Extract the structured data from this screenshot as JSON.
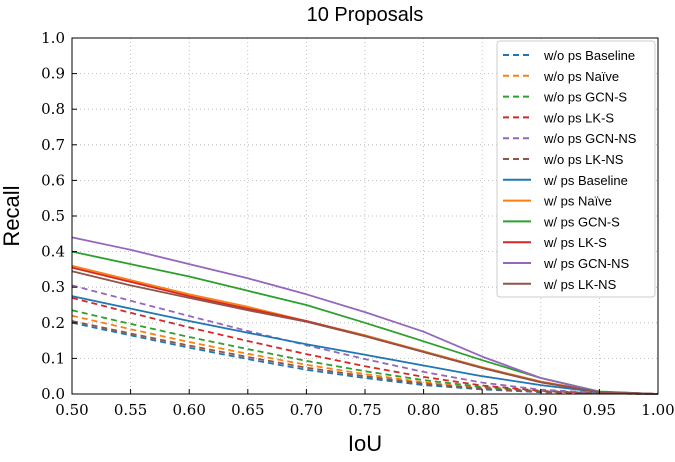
{
  "chart_data": {
    "type": "line",
    "title": "10 Proposals",
    "xlabel": "IoU",
    "ylabel": "Recall",
    "xlim": [
      0.5,
      1.0
    ],
    "ylim": [
      0.0,
      1.0
    ],
    "xticks": [
      "0.50",
      "0.55",
      "0.60",
      "0.65",
      "0.70",
      "0.75",
      "0.80",
      "0.85",
      "0.90",
      "0.95",
      "1.00"
    ],
    "yticks": [
      "0.0",
      "0.1",
      "0.2",
      "0.3",
      "0.4",
      "0.5",
      "0.6",
      "0.7",
      "0.8",
      "0.9",
      "1.0"
    ],
    "grid": true,
    "legend_position": "top-right",
    "x": [
      0.5,
      0.55,
      0.6,
      0.65,
      0.7,
      0.75,
      0.8,
      0.85,
      0.9,
      0.95,
      1.0
    ],
    "series": [
      {
        "name": "w/o ps Baseline",
        "style": "dashed",
        "color": "#1f77b4",
        "values": [
          0.2,
          0.165,
          0.13,
          0.098,
          0.068,
          0.045,
          0.025,
          0.013,
          0.005,
          0.002,
          0.0
        ]
      },
      {
        "name": "w/o ps Naïve",
        "style": "dashed",
        "color": "#ff7f0e",
        "values": [
          0.22,
          0.182,
          0.146,
          0.113,
          0.082,
          0.056,
          0.033,
          0.017,
          0.007,
          0.002,
          0.0
        ]
      },
      {
        "name": "w/o ps GCN-S",
        "style": "dashed",
        "color": "#2ca02c",
        "values": [
          0.235,
          0.197,
          0.16,
          0.126,
          0.093,
          0.064,
          0.039,
          0.02,
          0.008,
          0.002,
          0.0
        ]
      },
      {
        "name": "w/o ps LK-S",
        "style": "dashed",
        "color": "#d62728",
        "values": [
          0.27,
          0.228,
          0.187,
          0.149,
          0.112,
          0.078,
          0.048,
          0.024,
          0.009,
          0.002,
          0.0
        ]
      },
      {
        "name": "w/o ps GCN-NS",
        "style": "dashed",
        "color": "#9467bd",
        "values": [
          0.305,
          0.262,
          0.219,
          0.177,
          0.137,
          0.098,
          0.062,
          0.032,
          0.012,
          0.003,
          0.0
        ]
      },
      {
        "name": "w/o ps LK-NS",
        "style": "dashed",
        "color": "#8c564b",
        "values": [
          0.205,
          0.17,
          0.136,
          0.104,
          0.074,
          0.05,
          0.029,
          0.015,
          0.006,
          0.002,
          0.0
        ]
      },
      {
        "name": "w/ ps Baseline",
        "style": "solid",
        "color": "#1f77b4",
        "values": [
          0.275,
          0.24,
          0.205,
          0.172,
          0.14,
          0.11,
          0.08,
          0.05,
          0.025,
          0.005,
          0.0
        ]
      },
      {
        "name": "w/ ps Naïve",
        "style": "solid",
        "color": "#ff7f0e",
        "values": [
          0.36,
          0.32,
          0.28,
          0.245,
          0.205,
          0.165,
          0.12,
          0.075,
          0.035,
          0.006,
          0.0
        ]
      },
      {
        "name": "w/ ps GCN-S",
        "style": "solid",
        "color": "#2ca02c",
        "values": [
          0.4,
          0.365,
          0.33,
          0.29,
          0.25,
          0.2,
          0.148,
          0.095,
          0.045,
          0.007,
          0.0
        ]
      },
      {
        "name": "w/ ps LK-S",
        "style": "solid",
        "color": "#d62728",
        "values": [
          0.355,
          0.315,
          0.275,
          0.24,
          0.205,
          0.163,
          0.118,
          0.073,
          0.033,
          0.006,
          0.0
        ]
      },
      {
        "name": "w/ ps GCN-NS",
        "style": "solid",
        "color": "#9467bd",
        "values": [
          0.44,
          0.405,
          0.365,
          0.325,
          0.28,
          0.23,
          0.175,
          0.105,
          0.045,
          0.006,
          0.0
        ]
      },
      {
        "name": "w/ ps LK-NS",
        "style": "solid",
        "color": "#8c564b",
        "values": [
          0.345,
          0.305,
          0.27,
          0.235,
          0.203,
          0.162,
          0.118,
          0.073,
          0.033,
          0.005,
          0.0
        ]
      }
    ]
  }
}
